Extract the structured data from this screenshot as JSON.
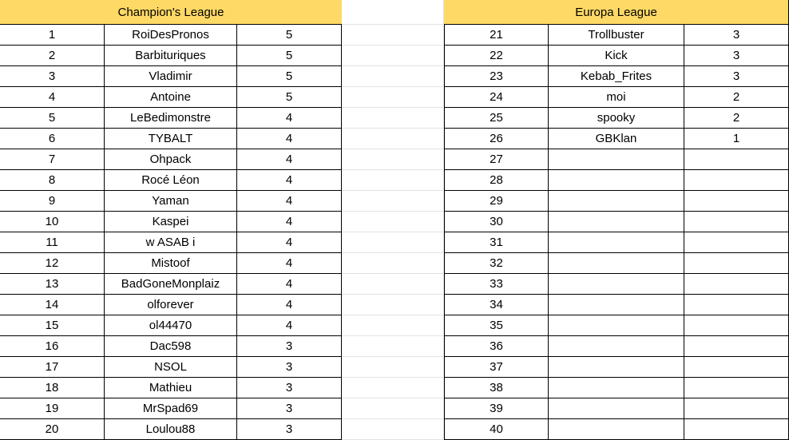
{
  "tables": [
    {
      "title": "Champion's League",
      "rows": [
        [
          1,
          "RoiDesPronos",
          5
        ],
        [
          2,
          "Barbituriques",
          5
        ],
        [
          3,
          "Vladimir",
          5
        ],
        [
          4,
          "Antoine",
          5
        ],
        [
          5,
          "LeBedimonstre",
          4
        ],
        [
          6,
          "TYBALT",
          4
        ],
        [
          7,
          "Ohpack",
          4
        ],
        [
          8,
          "Rocé Léon",
          4
        ],
        [
          9,
          "Yaman",
          4
        ],
        [
          10,
          "Kaspei",
          4
        ],
        [
          11,
          "w ASAB i",
          4
        ],
        [
          12,
          "Mistoof",
          4
        ],
        [
          13,
          "BadGoneMonplaiz",
          4
        ],
        [
          14,
          "olforever",
          4
        ],
        [
          15,
          "ol44470",
          4
        ],
        [
          16,
          "Dac598",
          3
        ],
        [
          17,
          "NSOL",
          3
        ],
        [
          18,
          "Mathieu",
          3
        ],
        [
          19,
          "MrSpad69",
          3
        ],
        [
          20,
          "Loulou88",
          3
        ]
      ]
    },
    {
      "title": "Europa League",
      "rows": [
        [
          21,
          "Trollbuster",
          3
        ],
        [
          22,
          "Kick",
          3
        ],
        [
          23,
          "Kebab_Frites",
          3
        ],
        [
          24,
          "moi",
          2
        ],
        [
          25,
          "spooky",
          2
        ],
        [
          26,
          "GBKlan",
          1
        ],
        [
          27
        ],
        [
          28
        ],
        [
          29
        ],
        [
          30
        ],
        [
          31
        ],
        [
          32
        ],
        [
          33
        ],
        [
          34
        ],
        [
          35
        ],
        [
          36
        ],
        [
          37
        ],
        [
          38
        ],
        [
          39
        ],
        [
          40
        ]
      ]
    }
  ]
}
